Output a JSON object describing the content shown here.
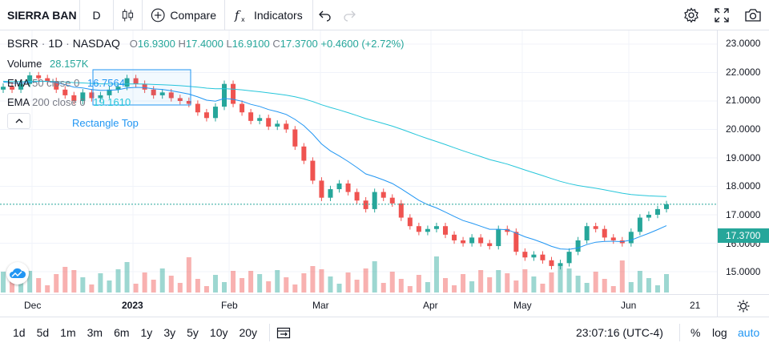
{
  "toolbar": {
    "symbol": "SIERRA BAN",
    "resolution": "D",
    "compare_label": "Compare",
    "indicators_label": "Indicators",
    "icons": [
      "candles-icon",
      "plus-circle-icon",
      "fx-icon",
      "undo-icon",
      "redo-icon",
      "gear-icon",
      "fullscreen-icon",
      "camera-icon"
    ]
  },
  "legend": {
    "ticker": "BSRR",
    "interval": "1D",
    "exchange": "NASDAQ",
    "o_label": "O",
    "o": "16.9300",
    "h_label": "H",
    "h": "17.4000",
    "l_label": "L",
    "l": "16.9100",
    "c_label": "C",
    "c": "17.3700",
    "change": "+0.4600 (+2.72%)",
    "volume_label": "Volume",
    "volume": "28.157K",
    "ema50_label": "EMA",
    "ema50_params": "50 close 0",
    "ema50": "16.7564",
    "ema200_label": "EMA",
    "ema200_params": "200 close 0",
    "ema200": "19.1610",
    "rectangle_label": "Rectangle Top"
  },
  "price_axis": {
    "labels": [
      "23.0000",
      "22.0000",
      "21.0000",
      "20.0000",
      "19.0000",
      "18.0000",
      "17.0000",
      "16.0000",
      "15.0000"
    ],
    "current": "17.3700"
  },
  "time_axis": {
    "labels": [
      {
        "text": "Dec",
        "bold": false
      },
      {
        "text": "2023",
        "bold": true
      },
      {
        "text": "Feb",
        "bold": false
      },
      {
        "text": "Mar",
        "bold": false
      },
      {
        "text": "Apr",
        "bold": false
      },
      {
        "text": "May",
        "bold": false
      },
      {
        "text": "Jun",
        "bold": false
      },
      {
        "text": "21",
        "bold": false
      }
    ]
  },
  "bottom": {
    "ranges": [
      "1d",
      "5d",
      "1m",
      "3m",
      "6m",
      "1y",
      "3y",
      "5y",
      "10y",
      "20y"
    ],
    "clock": "23:07:16 (UTC-4)",
    "percent": "%",
    "log": "log",
    "auto": "auto"
  },
  "colors": {
    "up": "#26a69a",
    "down": "#ef5350",
    "ema50": "#2196f3",
    "ema200": "#26c6da",
    "accent": "#2196f3"
  },
  "chart_data": {
    "type": "candlestick",
    "ylim": [
      14.5,
      23.2
    ],
    "series_close": [
      21.5,
      21.4,
      21.6,
      21.9,
      21.8,
      21.7,
      21.4,
      21.2,
      21.0,
      21.3,
      21.1,
      21.2,
      21.4,
      21.5,
      21.8,
      21.6,
      21.4,
      21.2,
      21.3,
      21.1,
      21.0,
      20.9,
      20.6,
      20.4,
      20.8,
      21.6,
      20.9,
      20.6,
      20.3,
      20.4,
      20.1,
      20.2,
      20.0,
      19.4,
      18.9,
      18.2,
      17.6,
      17.9,
      18.1,
      17.8,
      17.5,
      17.2,
      17.8,
      17.6,
      17.4,
      16.9,
      16.6,
      16.4,
      16.5,
      16.6,
      16.3,
      16.1,
      16.0,
      16.2,
      16.0,
      15.9,
      16.5,
      16.4,
      15.7,
      15.5,
      15.6,
      15.4,
      15.2,
      15.3,
      15.7,
      16.1,
      16.6,
      16.5,
      16.2,
      16.1,
      16.0,
      16.4,
      16.9,
      17.0,
      17.2,
      17.37
    ]
  }
}
